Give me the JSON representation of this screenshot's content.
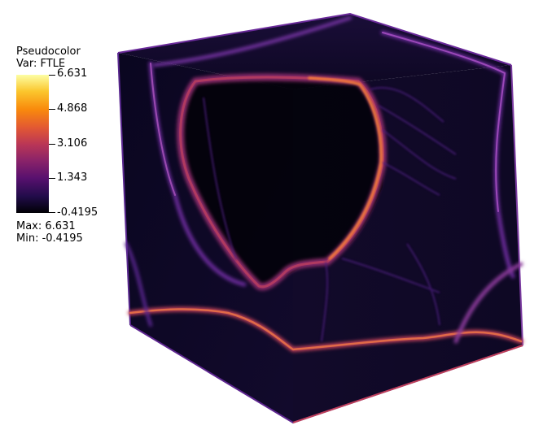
{
  "legend": {
    "title": "Pseudocolor",
    "var": "Var: FTLE",
    "ticks": [
      "6.631",
      "4.868",
      "3.106",
      "1.343",
      "-0.4195"
    ],
    "max": "Max:  6.631",
    "min": "Min: -0.4195"
  },
  "colormap": [
    "#000004",
    "#210c4a",
    "#57106e",
    "#8b2369",
    "#bb3755",
    "#e35932",
    "#f98a0c",
    "#fbc62d",
    "#fcfea4"
  ]
}
